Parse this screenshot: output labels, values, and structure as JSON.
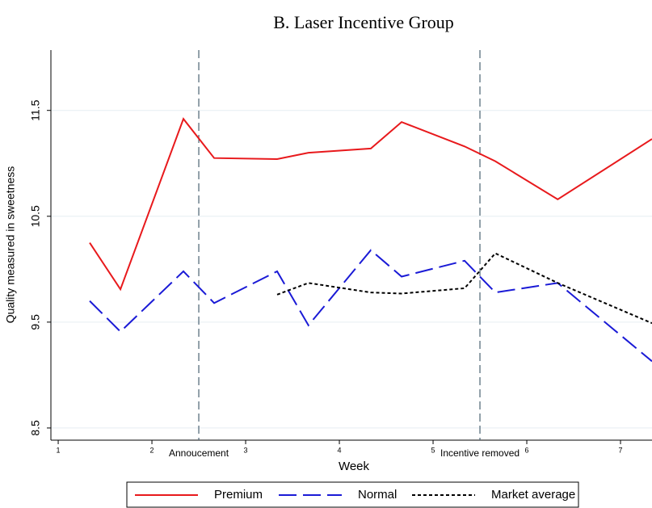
{
  "chart_data": {
    "type": "line",
    "title": "B. Laser Incentive Group",
    "x_label": "Week",
    "y_label": "Quality measured in sweetness",
    "x": [
      1.336,
      1.664,
      2.336,
      2.664,
      3.336,
      3.67,
      4.336,
      4.664,
      5.336,
      5.664,
      6.33,
      7.336
    ],
    "series": [
      {
        "name": "Premium",
        "color": "#e8191c",
        "style": "solid",
        "values": [
          10.25,
          9.81,
          11.42,
          11.05,
          11.04,
          11.1,
          11.14,
          11.39,
          11.16,
          11.02,
          10.66,
          11.23
        ]
      },
      {
        "name": "Normal",
        "color": "#1a1ad6",
        "style": "dashed",
        "values": [
          9.7,
          9.41,
          9.98,
          9.68,
          9.98,
          9.47,
          10.18,
          9.93,
          10.08,
          9.78,
          9.87,
          9.13
        ]
      },
      {
        "name": "Market average",
        "color": "#000000",
        "style": "dotted",
        "values": [
          null,
          null,
          null,
          null,
          9.76,
          9.87,
          9.78,
          9.77,
          9.82,
          10.15,
          9.87,
          9.49
        ]
      }
    ],
    "vlines": [
      {
        "x": 2.5,
        "label": "Annoucement"
      },
      {
        "x": 5.5,
        "label": "Incentive removed"
      }
    ],
    "xlim": [
      0.922,
      7.336
    ],
    "ylim": [
      8.385,
      12.07
    ],
    "xticks": [
      1,
      2,
      3,
      4,
      5,
      6,
      7
    ],
    "yticks": [
      8.5,
      9.5,
      10.5,
      11.5
    ],
    "grid": true
  }
}
